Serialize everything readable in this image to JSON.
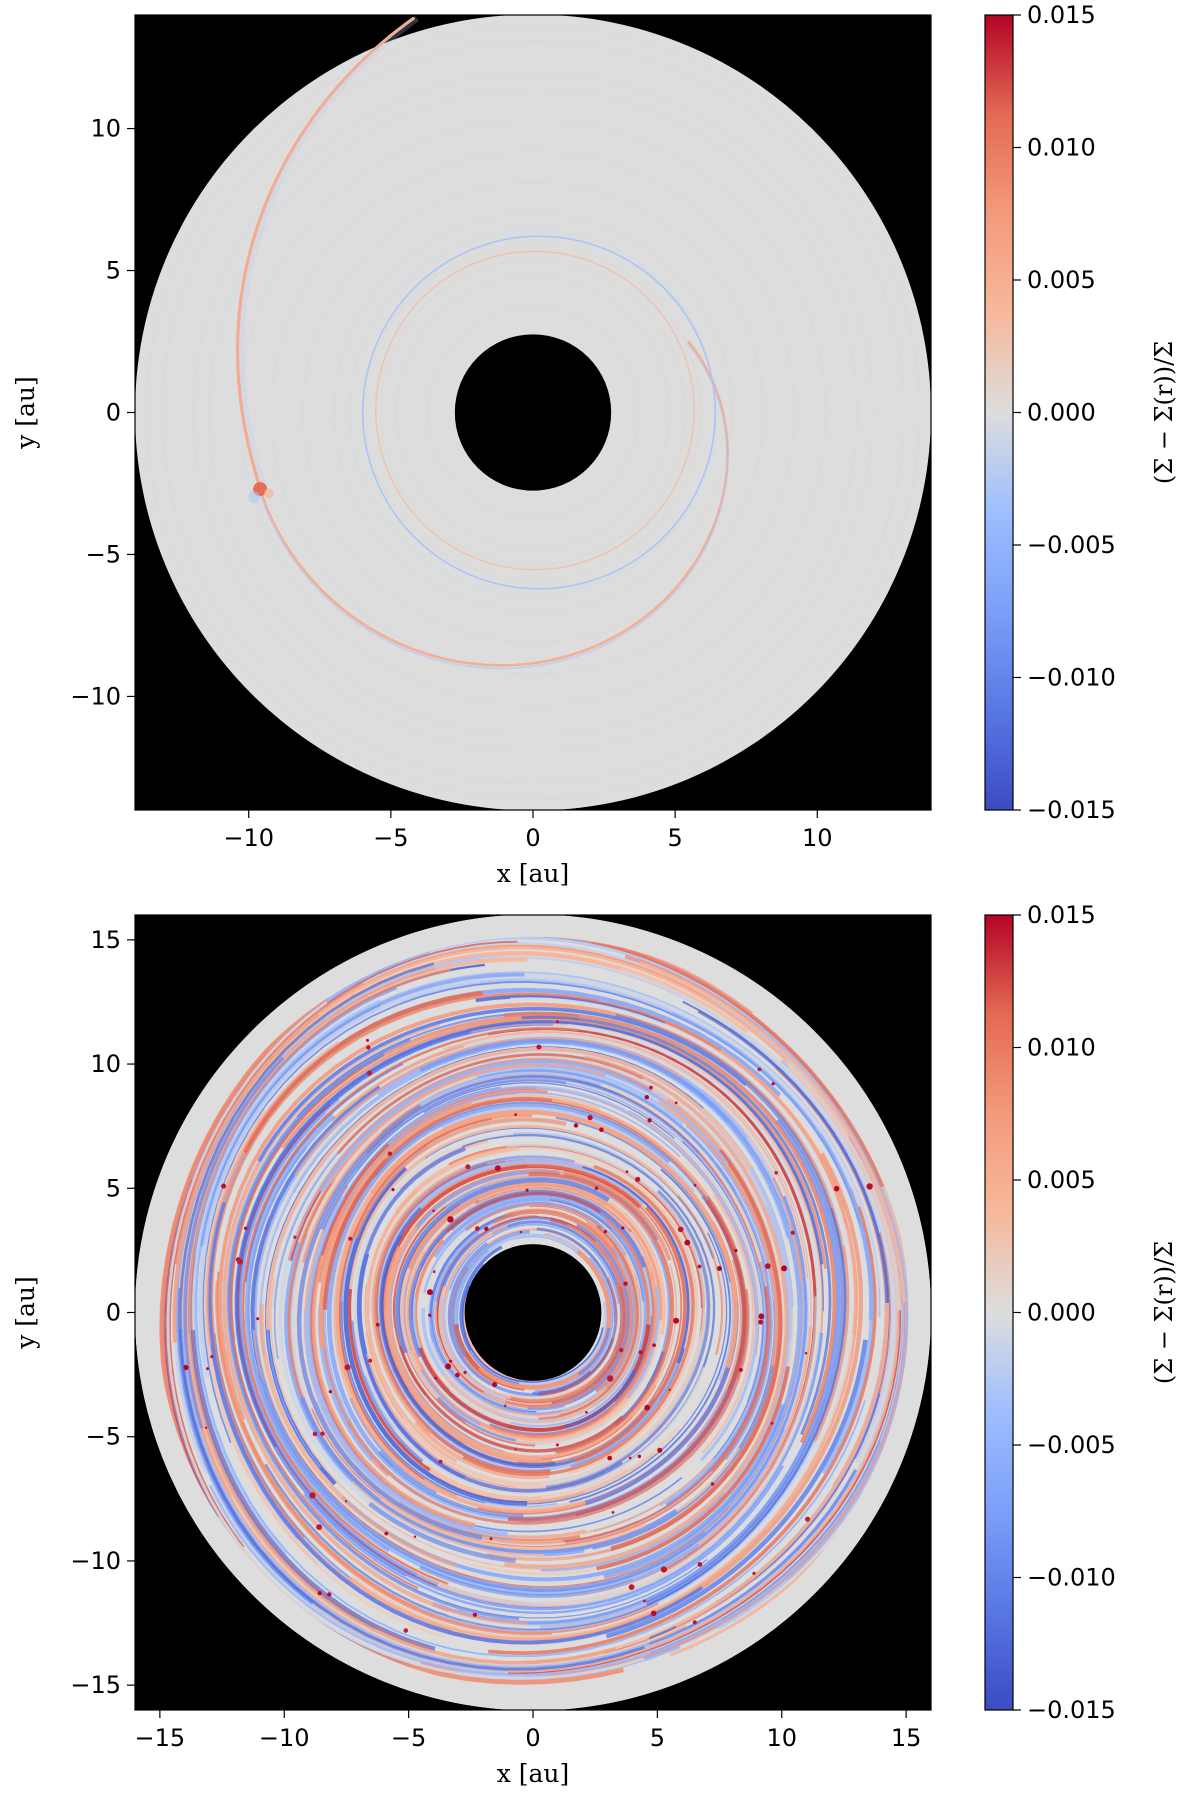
{
  "chart_data": [
    {
      "type": "heatmap",
      "title": "",
      "xlabel": "x [au]",
      "ylabel": "y [au]",
      "xlim": [
        -14,
        14
      ],
      "ylim": [
        -14,
        14
      ],
      "xticks": [
        -10,
        -5,
        0,
        5,
        10
      ],
      "yticks": [
        -10,
        -5,
        0,
        5,
        10
      ],
      "xtick_labels": [
        "−10",
        "−5",
        "0",
        "5",
        "10"
      ],
      "ytick_labels": [
        "−10",
        "−5",
        "0",
        "5",
        "10"
      ],
      "disk_inner_radius": 2.75,
      "disk_outer_radius": 14,
      "background_color": "#000000",
      "colormap": "coolwarm",
      "colorbar": {
        "label": "(Σ − Σ(r))/Σ",
        "range": [
          -0.015,
          0.015
        ],
        "ticks": [
          0.015,
          0.01,
          0.005,
          0.0,
          -0.005,
          -0.01,
          -0.015
        ],
        "tick_labels": [
          "0.015",
          "0.010",
          "0.005",
          "0.000",
          "−0.005",
          "−0.010",
          "−0.015"
        ]
      },
      "features": [
        {
          "kind": "planet",
          "x": -9.6,
          "y": -2.7
        },
        {
          "kind": "spiral-arm",
          "peak_value": 0.006
        }
      ]
    },
    {
      "type": "heatmap",
      "title": "",
      "xlabel": "x [au]",
      "ylabel": "y [au]",
      "xlim": [
        -16,
        16
      ],
      "ylim": [
        -16,
        16
      ],
      "xticks": [
        -15,
        -10,
        -5,
        0,
        5,
        10,
        15
      ],
      "yticks": [
        -15,
        -10,
        -5,
        0,
        5,
        10,
        15
      ],
      "xtick_labels": [
        "−15",
        "−10",
        "−5",
        "0",
        "5",
        "10",
        "15"
      ],
      "ytick_labels": [
        "−15",
        "−10",
        "−5",
        "0",
        "5",
        "10",
        "15"
      ],
      "disk_inner_radius": 2.75,
      "disk_outer_radius": 16,
      "background_color": "#000000",
      "colormap": "coolwarm",
      "colorbar": {
        "label": "(Σ − Σ(r))/Σ",
        "range": [
          -0.015,
          0.015
        ],
        "ticks": [
          0.015,
          0.01,
          0.005,
          0.0,
          -0.005,
          -0.01,
          -0.015
        ],
        "tick_labels": [
          "0.015",
          "0.010",
          "0.005",
          "0.000",
          "−0.005",
          "−0.010",
          "−0.015"
        ]
      },
      "features": [
        {
          "kind": "turbulent-spiral-structure",
          "peak_value": 0.015
        }
      ]
    }
  ]
}
